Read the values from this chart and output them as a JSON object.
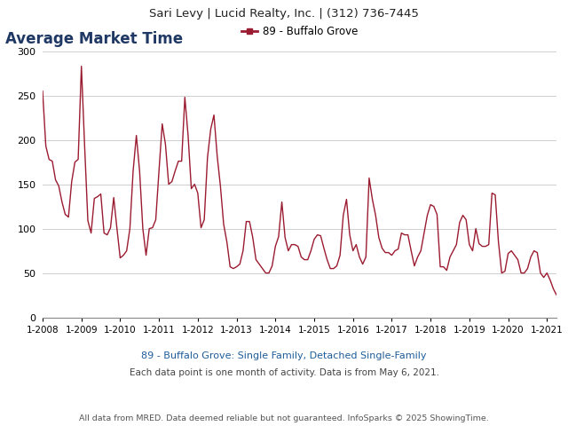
{
  "title": "Average Market Time",
  "header": "Sari Levy | Lucid Realty, Inc. | (312) 736-7445",
  "legend_label": "89 - Buffalo Grove",
  "subtitle1": "89 - Buffalo Grove: Single Family, Detached Single-Family",
  "subtitle2": "Each data point is one month of activity. Data is from May 6, 2021.",
  "footer": "All data from MRED. Data deemed reliable but not guaranteed. InfoSparks © 2025 ShowingTime.",
  "line_color": "#9B1B30",
  "title_color": "#1F3864",
  "subtitle_color": "#1F5C99",
  "header_bg": "#E0E0E0",
  "ylim": [
    0,
    300
  ],
  "yticks": [
    0,
    50,
    100,
    150,
    200,
    250,
    300
  ],
  "xtick_labels": [
    "1-2008",
    "1-2009",
    "1-2010",
    "1-2011",
    "1-2012",
    "1-2013",
    "1-2014",
    "1-2015",
    "1-2016",
    "1-2017",
    "1-2018",
    "1-2019",
    "1-2020",
    "1-2021"
  ],
  "values": [
    255,
    193,
    178,
    176,
    155,
    148,
    130,
    116,
    113,
    153,
    175,
    178,
    283,
    193,
    109,
    95,
    134,
    136,
    139,
    95,
    93,
    101,
    135,
    100,
    67,
    70,
    75,
    100,
    165,
    205,
    165,
    100,
    70,
    100,
    101,
    110,
    165,
    218,
    195,
    150,
    153,
    165,
    176,
    176,
    248,
    205,
    145,
    150,
    140,
    101,
    110,
    180,
    212,
    228,
    182,
    148,
    105,
    85,
    57,
    55,
    57,
    60,
    75,
    108,
    108,
    90,
    65,
    60,
    55,
    50,
    50,
    58,
    80,
    91,
    130,
    90,
    75,
    82,
    82,
    80,
    68,
    65,
    65,
    75,
    88,
    93,
    92,
    78,
    65,
    55,
    55,
    58,
    70,
    115,
    133,
    93,
    75,
    82,
    68,
    60,
    68,
    157,
    133,
    115,
    90,
    78,
    73,
    73,
    70,
    75,
    77,
    95,
    93,
    93,
    75,
    58,
    68,
    75,
    95,
    115,
    127,
    125,
    116,
    57,
    57,
    53,
    68,
    75,
    82,
    107,
    115,
    110,
    82,
    75,
    100,
    83,
    80,
    80,
    82,
    140,
    138,
    85,
    50,
    52,
    72,
    75,
    70,
    65,
    50,
    50,
    55,
    68,
    75,
    73,
    50,
    45,
    50,
    42,
    32,
    25
  ]
}
